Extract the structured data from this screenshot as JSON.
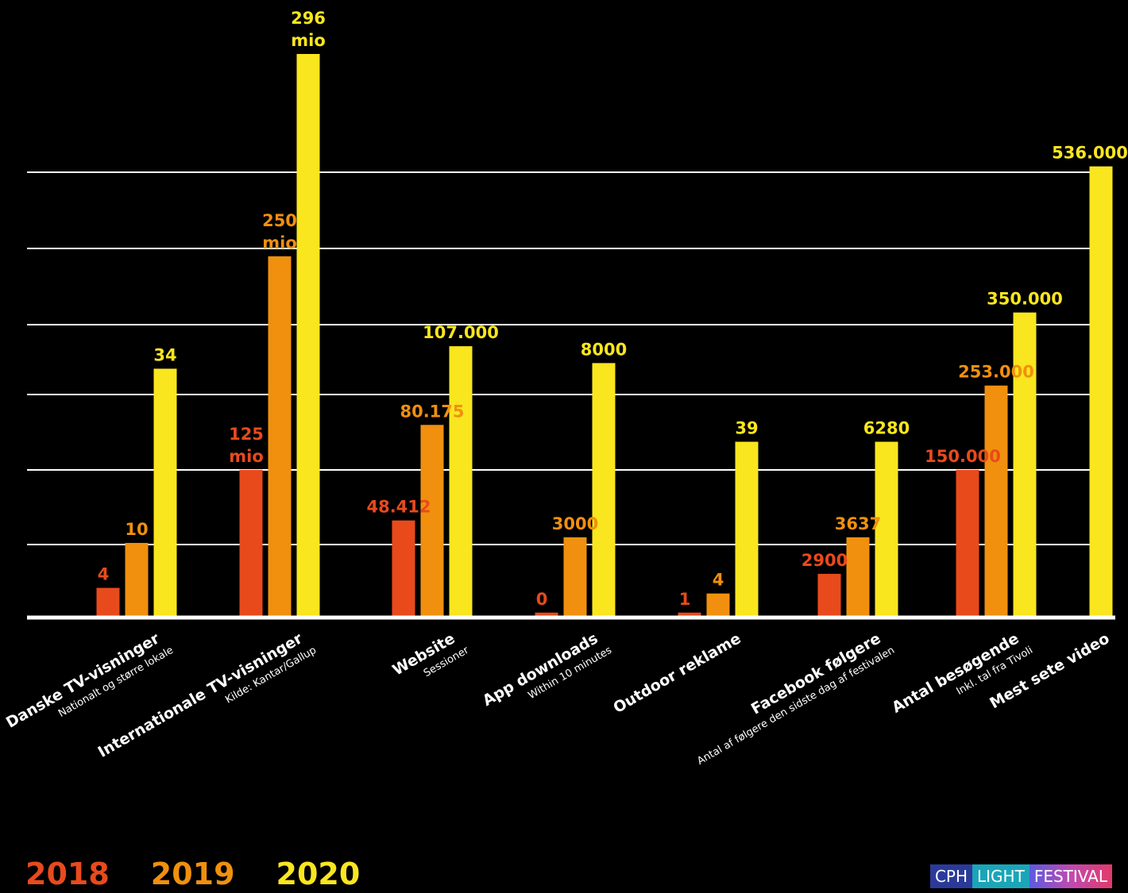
{
  "colors": {
    "2018": "#e84a1c",
    "2019": "#f0900e",
    "2020": "#f9e61e",
    "grid": "#ffffff",
    "background": "#000000"
  },
  "legend": [
    "2018",
    "2019",
    "2020"
  ],
  "logo": {
    "parts": [
      "CPH",
      "LIGHT",
      "FESTIVAL"
    ],
    "colors": [
      "#2b3a9a",
      "#1aa6b8",
      "#7a3fd0",
      "#e23a6a"
    ]
  },
  "chart_data": {
    "type": "bar",
    "title": "",
    "xlabel": "",
    "ylabel": "",
    "grid": true,
    "y_axis_labels": false,
    "legend_placement": "bottom-left",
    "note": "Bars within each category are drawn on independent scales; heights follow the figure.",
    "series": [
      {
        "name": "2018",
        "color": "#e84a1c"
      },
      {
        "name": "2019",
        "color": "#f0900e"
      },
      {
        "name": "2020",
        "color": "#f9e61e"
      }
    ],
    "categories": [
      {
        "label": "Danske TV-visninger",
        "sublabel": "Nationalt og større lokale",
        "bars": [
          {
            "series": "2018",
            "value": 4,
            "label": [
              "4"
            ],
            "relative_height": 0.05
          },
          {
            "series": "2019",
            "value": 10,
            "label": [
              "10"
            ],
            "relative_height": 0.13
          },
          {
            "series": "2020",
            "value": 34,
            "label": [
              "34"
            ],
            "relative_height": 0.44
          }
        ]
      },
      {
        "label": "Internationale TV-visninger",
        "sublabel": "Kilde: Kantar/Gallup",
        "bars": [
          {
            "series": "2018",
            "value": 125,
            "unit": "mio",
            "label": [
              "125",
              "mio"
            ],
            "relative_height": 0.26
          },
          {
            "series": "2019",
            "value": 250,
            "unit": "mio",
            "label": [
              "250",
              "mio"
            ],
            "relative_height": 0.64
          },
          {
            "series": "2020",
            "value": 296,
            "unit": "mio",
            "label": [
              "296",
              "mio"
            ],
            "relative_height": 1.0
          }
        ]
      },
      {
        "label": "Website",
        "sublabel": "Sessioner",
        "bars": [
          {
            "series": "2018",
            "value": 48412,
            "label": [
              "48.412"
            ],
            "relative_height": 0.17
          },
          {
            "series": "2019",
            "value": 80175,
            "label": [
              "80.175"
            ],
            "relative_height": 0.34
          },
          {
            "series": "2020",
            "value": 107000,
            "label": [
              "107.000"
            ],
            "relative_height": 0.48
          }
        ]
      },
      {
        "label": "App downloads",
        "sublabel": "Within 10 minutes",
        "bars": [
          {
            "series": "2018",
            "value": 0,
            "label": [
              "0"
            ],
            "relative_height": 0.006
          },
          {
            "series": "2019",
            "value": 3000,
            "label": [
              "3000"
            ],
            "relative_height": 0.14
          },
          {
            "series": "2020",
            "value": 8000,
            "label": [
              "8000"
            ],
            "relative_height": 0.45
          }
        ]
      },
      {
        "label": "Outdoor reklame",
        "sublabel": "",
        "bars": [
          {
            "series": "2018",
            "value": 1,
            "label": [
              "1"
            ],
            "relative_height": 0.006
          },
          {
            "series": "2019",
            "value": 4,
            "label": [
              "4"
            ],
            "relative_height": 0.04
          },
          {
            "series": "2020",
            "value": 39,
            "label": [
              "39"
            ],
            "relative_height": 0.31
          }
        ]
      },
      {
        "label": "Facebook følgere",
        "sublabel": "Antal af følgere den sidste dag af festivalen",
        "bars": [
          {
            "series": "2018",
            "value": 2900,
            "label": [
              "2900"
            ],
            "relative_height": 0.075
          },
          {
            "series": "2019",
            "value": 3637,
            "label": [
              "3637"
            ],
            "relative_height": 0.14
          },
          {
            "series": "2020",
            "value": 6280,
            "label": [
              "6280"
            ],
            "relative_height": 0.31
          }
        ]
      },
      {
        "label": "Antal besøgende",
        "sublabel": "Inkl. tal fra Tivoli",
        "bars": [
          {
            "series": "2018",
            "value": 150000,
            "label": [
              "150.000"
            ],
            "relative_height": 0.26
          },
          {
            "series": "2019",
            "value": 253000,
            "label": [
              "253.000"
            ],
            "relative_height": 0.41
          },
          {
            "series": "2020",
            "value": 350000,
            "label": [
              "350.000"
            ],
            "relative_height": 0.54
          }
        ]
      },
      {
        "label": "Mest sete video",
        "sublabel": "",
        "bars": [
          {
            "series": "2020",
            "value": 536000,
            "label": [
              "536.000"
            ],
            "relative_height": 0.8
          }
        ]
      }
    ]
  }
}
